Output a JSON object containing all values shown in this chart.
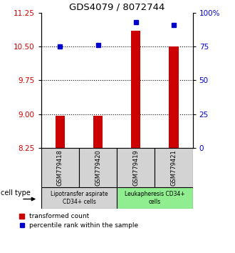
{
  "title": "GDS4079 / 8072744",
  "samples": [
    "GSM779418",
    "GSM779420",
    "GSM779419",
    "GSM779421"
  ],
  "transformed_counts": [
    8.97,
    8.97,
    10.85,
    10.5
  ],
  "percentile_ranks_pct": [
    75,
    76,
    93,
    91
  ],
  "ylim_left": [
    8.25,
    11.25
  ],
  "yticks_left": [
    8.25,
    9.0,
    9.75,
    10.5,
    11.25
  ],
  "yticks_right": [
    0,
    25,
    50,
    75,
    100
  ],
  "ylim_right": [
    0,
    100
  ],
  "groups": [
    {
      "label": "Lipotransfer aspirate\nCD34+ cells",
      "color": "#90EE90",
      "start": 0,
      "end": 1,
      "bg": "#d3d3d3"
    },
    {
      "label": "Leukapheresis CD34+\ncells",
      "color": "#90EE90",
      "start": 2,
      "end": 3,
      "bg": "#90EE90"
    }
  ],
  "bar_color": "#cc0000",
  "dot_color": "#0000cc",
  "bar_width": 0.25,
  "left_axis_color": "#cc0000",
  "right_axis_color": "#0000cc",
  "sample_box_color": "#d3d3d3"
}
